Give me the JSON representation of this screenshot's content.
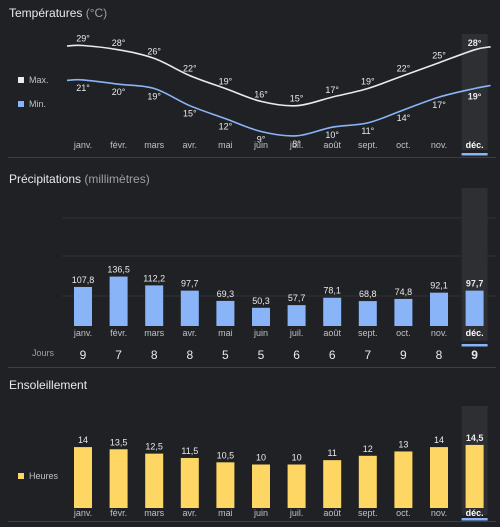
{
  "temperature": {
    "title": "Températures",
    "unit": "(°C)",
    "legend": [
      {
        "label": "Max.",
        "color": "#e8eaed"
      },
      {
        "label": "Min.",
        "color": "#8ab4f8"
      }
    ]
  },
  "precipitation": {
    "title": "Précipitations",
    "unit": "(millimètres)",
    "days_label": "Jours"
  },
  "sunshine": {
    "title": "Ensoleillement",
    "legend_label": "Heures",
    "color": "#fdd663"
  },
  "selected_month_index": 11,
  "chart_data": [
    {
      "type": "line",
      "title": "Températures",
      "ylabel": "°C",
      "categories": [
        "janv.",
        "févr.",
        "mars",
        "avr.",
        "mai",
        "juin",
        "juil.",
        "août",
        "sept.",
        "oct.",
        "nov.",
        "déc."
      ],
      "series": [
        {
          "name": "Max.",
          "values": [
            29,
            28,
            26,
            22,
            19,
            16,
            15,
            17,
            19,
            22,
            25,
            28
          ]
        },
        {
          "name": "Min.",
          "values": [
            21,
            20,
            19,
            15,
            12,
            9,
            8,
            10,
            11,
            14,
            17,
            19
          ]
        }
      ],
      "value_labels": {
        "max": [
          "29°",
          "28°",
          "26°",
          "22°",
          "19°",
          "16°",
          "15°",
          "17°",
          "19°",
          "22°",
          "25°",
          "28°"
        ],
        "min": [
          "21°",
          "20°",
          "19°",
          "15°",
          "12°",
          "9°",
          "8°",
          "10°",
          "11°",
          "14°",
          "17°",
          "19°"
        ]
      }
    },
    {
      "type": "bar",
      "title": "Précipitations",
      "ylabel": "millimètres",
      "categories": [
        "janv.",
        "févr.",
        "mars",
        "avr.",
        "mai",
        "juin",
        "juil.",
        "août",
        "sept.",
        "oct.",
        "nov.",
        "déc."
      ],
      "values": [
        107.8,
        136.5,
        112.2,
        97.7,
        69.3,
        50.3,
        57.7,
        78.1,
        68.8,
        74.8,
        92.1,
        97.7
      ],
      "value_labels": [
        "107,8",
        "136,5",
        "112,2",
        "97,7",
        "69,3",
        "50,3",
        "57,7",
        "78,1",
        "68,8",
        "74,8",
        "92,1",
        "97,7"
      ],
      "days": [
        "9",
        "7",
        "8",
        "8",
        "5",
        "5",
        "6",
        "6",
        "7",
        "9",
        "8",
        "9"
      ],
      "color": "#8ab4f8"
    },
    {
      "type": "bar",
      "title": "Ensoleillement",
      "ylabel": "Heures",
      "categories": [
        "janv.",
        "févr.",
        "mars",
        "avr.",
        "mai",
        "juin",
        "juil.",
        "août",
        "sept.",
        "oct.",
        "nov.",
        "déc."
      ],
      "values": [
        14,
        13.5,
        12.5,
        11.5,
        10.5,
        10,
        10,
        11,
        12,
        13,
        14,
        14.5
      ],
      "value_labels": [
        "14",
        "13,5",
        "12,5",
        "11,5",
        "10,5",
        "10",
        "10",
        "11",
        "12",
        "13",
        "14",
        "14,5"
      ],
      "color": "#fdd663"
    }
  ]
}
